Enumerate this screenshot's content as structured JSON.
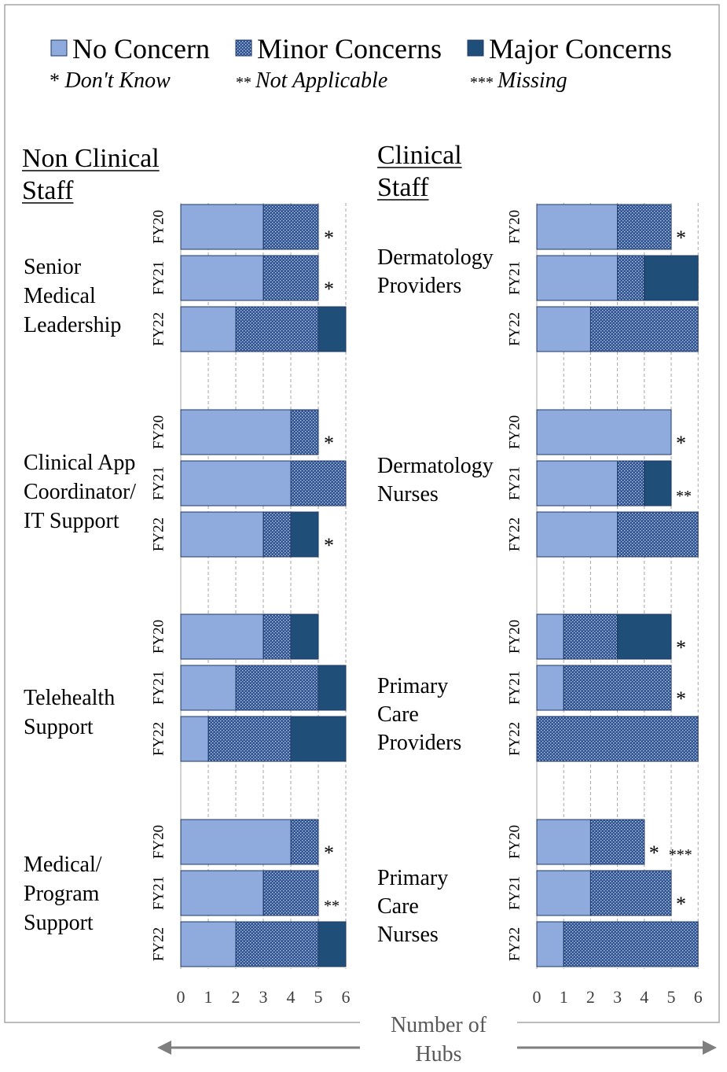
{
  "legend": {
    "items": [
      {
        "label": "No Concern",
        "key": "no"
      },
      {
        "label": "Minor Concerns",
        "key": "minor"
      },
      {
        "label": "Major Concerns",
        "key": "major"
      }
    ],
    "notes": [
      {
        "symbol": "*",
        "label": "Don't Know"
      },
      {
        "symbol": "**",
        "label": "Not Applicable"
      },
      {
        "symbol": "***",
        "label": "Missing"
      }
    ]
  },
  "colors": {
    "no": "#8faadc",
    "minor": "#2f5597",
    "major": "#1f4e79",
    "outline": "#1f3864",
    "grid": "#a6a6a6",
    "frame": "#a6a6a6",
    "arrow": "#7f7f7f",
    "text": "#000000",
    "xlabel": "#595959"
  },
  "axis": {
    "xlabel": "Number of Hubs",
    "xlabel_lines": [
      "Number of",
      "Hubs"
    ],
    "xlim": [
      0,
      6
    ],
    "ticks": [
      0,
      1,
      2,
      3,
      4,
      5,
      6
    ]
  },
  "chart_data": [
    {
      "type": "bar",
      "orientation": "horizontal",
      "stacked": true,
      "title": "Non Clinical Staff",
      "title_lines": [
        "Non Clinical",
        "Staff"
      ],
      "xlabel": "Number of Hubs",
      "xlim": [
        0,
        6
      ],
      "groups": [
        {
          "label_lines": [
            "Senior",
            "Medical",
            "Leadership"
          ],
          "rows": [
            {
              "year": "FY20",
              "no": 3,
              "minor": 2,
              "major": 0,
              "note": "*"
            },
            {
              "year": "FY21",
              "no": 3,
              "minor": 2,
              "major": 0,
              "note": "*"
            },
            {
              "year": "FY22",
              "no": 2,
              "minor": 3,
              "major": 1,
              "note": ""
            }
          ]
        },
        {
          "label_lines": [
            "Clinical App",
            "Coordinator/",
            "IT Support"
          ],
          "rows": [
            {
              "year": "FY20",
              "no": 4,
              "minor": 1,
              "major": 0,
              "note": "*"
            },
            {
              "year": "FY21",
              "no": 4,
              "minor": 2,
              "major": 0,
              "note": ""
            },
            {
              "year": "FY22",
              "no": 3,
              "minor": 1,
              "major": 1,
              "note": "*"
            }
          ]
        },
        {
          "label_lines": [
            "Telehealth",
            "Support"
          ],
          "rows": [
            {
              "year": "FY20",
              "no": 3,
              "minor": 1,
              "major": 1,
              "note": ""
            },
            {
              "year": "FY21",
              "no": 2,
              "minor": 3,
              "major": 1,
              "note": ""
            },
            {
              "year": "FY22",
              "no": 1,
              "minor": 3,
              "major": 2,
              "note": ""
            }
          ]
        },
        {
          "label_lines": [
            "Medical/",
            "Program",
            "Support"
          ],
          "rows": [
            {
              "year": "FY20",
              "no": 4,
              "minor": 1,
              "major": 0,
              "note": "*"
            },
            {
              "year": "FY21",
              "no": 3,
              "minor": 2,
              "major": 0,
              "note": "**"
            },
            {
              "year": "FY22",
              "no": 2,
              "minor": 3,
              "major": 1,
              "note": ""
            }
          ]
        }
      ]
    },
    {
      "type": "bar",
      "orientation": "horizontal",
      "stacked": true,
      "title": "Clinical Staff",
      "title_lines": [
        "Clinical",
        "Staff"
      ],
      "xlabel": "Number of Hubs",
      "xlim": [
        0,
        6
      ],
      "groups": [
        {
          "label_lines": [
            "Dermatology",
            "Providers"
          ],
          "rows": [
            {
              "year": "FY20",
              "no": 3,
              "minor": 2,
              "major": 0,
              "note": "*"
            },
            {
              "year": "FY21",
              "no": 3,
              "minor": 1,
              "major": 2,
              "note": ""
            },
            {
              "year": "FY22",
              "no": 2,
              "minor": 4,
              "major": 0,
              "note": ""
            }
          ]
        },
        {
          "label_lines": [
            "Dermatology",
            "Nurses"
          ],
          "rows": [
            {
              "year": "FY20",
              "no": 5,
              "minor": 0,
              "major": 0,
              "note": "*"
            },
            {
              "year": "FY21",
              "no": 3,
              "minor": 1,
              "major": 1,
              "note": "**"
            },
            {
              "year": "FY22",
              "no": 3,
              "minor": 3,
              "major": 0,
              "note": ""
            }
          ]
        },
        {
          "label_lines": [
            "Primary",
            "Care",
            "Providers"
          ],
          "rows": [
            {
              "year": "FY20",
              "no": 1,
              "minor": 2,
              "major": 2,
              "note": "*"
            },
            {
              "year": "FY21",
              "no": 1,
              "minor": 4,
              "major": 0,
              "note": "*"
            },
            {
              "year": "FY22",
              "no": 0,
              "minor": 6,
              "major": 0,
              "note": ""
            }
          ]
        },
        {
          "label_lines": [
            "Primary",
            "Care",
            "Nurses"
          ],
          "rows": [
            {
              "year": "FY20",
              "no": 2,
              "minor": 2,
              "major": 0,
              "note": "*  ***"
            },
            {
              "year": "FY21",
              "no": 2,
              "minor": 3,
              "major": 0,
              "note": "*"
            },
            {
              "year": "FY22",
              "no": 1,
              "minor": 5,
              "major": 0,
              "note": ""
            }
          ]
        }
      ]
    }
  ]
}
